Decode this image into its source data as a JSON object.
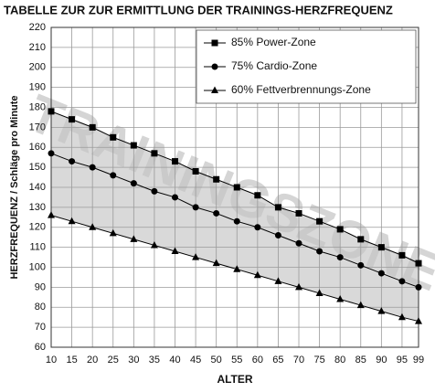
{
  "chart_data": {
    "type": "line",
    "title": "TABELLE ZUR ZUR ERMITTLUNG DER TRAININGS-HERZFREQUENZ",
    "y_label": "HERZFREQUENZ / Schläge pro Minute",
    "x_label": "ALTER",
    "watermark": "TRAININGSZONE",
    "x": [
      10,
      15,
      20,
      25,
      30,
      35,
      40,
      45,
      50,
      55,
      60,
      65,
      70,
      75,
      80,
      85,
      90,
      95,
      99
    ],
    "series": [
      {
        "name": "85% Power-Zone",
        "color": "#000000",
        "marker": "square",
        "values": [
          178,
          174,
          170,
          165,
          161,
          157,
          153,
          148,
          144,
          140,
          136,
          130,
          127,
          123,
          119,
          114,
          110,
          106,
          102
        ]
      },
      {
        "name": "75% Cardio-Zone",
        "color": "#000000",
        "marker": "circle",
        "values": [
          157,
          153,
          150,
          146,
          142,
          138,
          135,
          130,
          127,
          123,
          120,
          116,
          112,
          108,
          105,
          101,
          97,
          93,
          90
        ]
      },
      {
        "name": "60% Fettverbrennungs-Zone",
        "color": "#000000",
        "marker": "triangle",
        "values": [
          126,
          123,
          120,
          117,
          114,
          111,
          108,
          105,
          102,
          99,
          96,
          93,
          90,
          87,
          84,
          81,
          78,
          75,
          73
        ]
      }
    ],
    "xlim": [
      10,
      99
    ],
    "xticks": [
      10,
      15,
      20,
      25,
      30,
      35,
      40,
      45,
      50,
      55,
      60,
      65,
      70,
      75,
      80,
      85,
      90,
      95,
      99
    ],
    "ylim": [
      60,
      220
    ],
    "yticks": [
      60,
      70,
      80,
      90,
      100,
      110,
      120,
      130,
      140,
      150,
      160,
      170,
      180,
      190,
      200,
      210,
      220
    ],
    "grid": true,
    "legend": "top-right",
    "band_color": "#d9d9d9"
  }
}
